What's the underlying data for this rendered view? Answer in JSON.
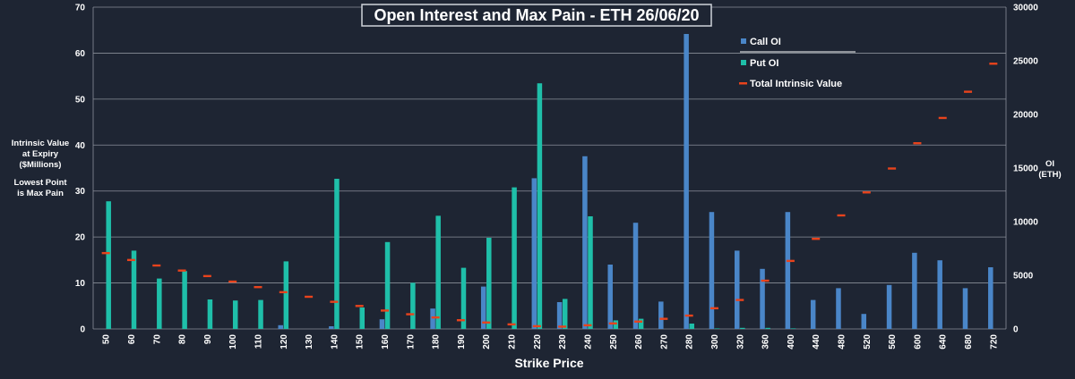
{
  "chart_data": {
    "type": "bar",
    "title": "Open Interest and Max Pain - ETH 26/06/20",
    "xlabel": "Strike Price",
    "ylabel_left": [
      "Intrinsic Value",
      "at Expiry",
      "($Millions)",
      "",
      "Lowest Point",
      "is Max Pain"
    ],
    "ylabel_right": [
      "OI",
      "(ETH)"
    ],
    "ylim_left": [
      0,
      70
    ],
    "yticks_left": [
      "0",
      "10",
      "20",
      "30",
      "40",
      "50",
      "60",
      "70"
    ],
    "ylim_right": [
      0,
      30000
    ],
    "yticks_right": [
      "0",
      "5000",
      "10000",
      "15000",
      "20000",
      "25000",
      "30000"
    ],
    "grid": true,
    "legend_position": "top-right",
    "categories": [
      "50",
      "60",
      "70",
      "80",
      "90",
      "100",
      "110",
      "120",
      "130",
      "140",
      "150",
      "160",
      "170",
      "180",
      "190",
      "200",
      "210",
      "220",
      "230",
      "240",
      "250",
      "260",
      "270",
      "280",
      "300",
      "320",
      "360",
      "400",
      "440",
      "480",
      "520",
      "560",
      "600",
      "640",
      "680",
      "720"
    ],
    "series": [
      {
        "name": "Call OI",
        "kind": "bar",
        "axis": "right",
        "color": "#4a86c8",
        "values": [
          0,
          0,
          0,
          0,
          0,
          0,
          0,
          350,
          0,
          250,
          0,
          900,
          0,
          1900,
          0,
          3950,
          0,
          14050,
          2500,
          16100,
          6000,
          9900,
          2550,
          27500,
          10900,
          7300,
          5600,
          10900,
          2700,
          3800,
          1400,
          4100,
          7100,
          6400,
          3800,
          5750
        ]
      },
      {
        "name": "Put OI",
        "kind": "bar",
        "axis": "right",
        "color": "#1fbfa9",
        "values": [
          11900,
          7300,
          4700,
          5400,
          2750,
          2650,
          2700,
          6300,
          0,
          14000,
          2000,
          8100,
          4300,
          10550,
          5700,
          8500,
          13200,
          22900,
          2800,
          10500,
          800,
          950,
          0,
          500,
          50,
          100,
          100,
          50,
          0,
          0,
          0,
          0,
          0,
          0,
          0,
          0
        ]
      },
      {
        "name": "Total Intrinsic Value",
        "kind": "marker",
        "axis": "left",
        "color": "#e8431c",
        "values": [
          16.5,
          15.0,
          13.8,
          12.7,
          11.5,
          10.3,
          9.1,
          8.0,
          7.0,
          5.9,
          5.0,
          4.0,
          3.2,
          2.5,
          1.9,
          1.4,
          1.0,
          0.6,
          0.5,
          0.8,
          1.2,
          1.6,
          2.2,
          2.9,
          4.5,
          6.3,
          10.5,
          14.8,
          19.6,
          24.7,
          29.7,
          34.9,
          40.4,
          45.9,
          51.6,
          57.7
        ]
      }
    ]
  }
}
